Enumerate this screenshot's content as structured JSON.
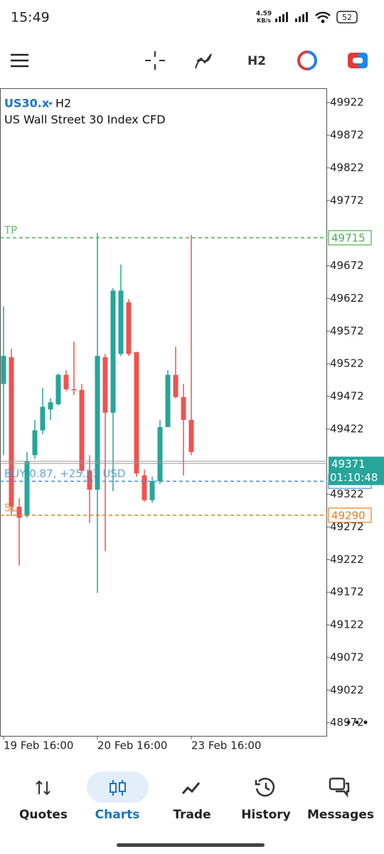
{
  "status_bar": {
    "time": "15:49",
    "speed": "4.59",
    "speed_unit": "KB/s",
    "battery": "52"
  },
  "toolbar": {
    "timeframe": "H2"
  },
  "chart": {
    "type": "candlestick",
    "symbol": "US30.x",
    "timeframe": "H2",
    "description": "US Wall Street 30 Index CFD",
    "categories": [
      "19 Feb 16:00",
      null,
      null,
      null,
      null,
      null,
      null,
      null,
      null,
      null,
      null,
      null,
      "20 Feb 16:00",
      null,
      null,
      null,
      null,
      null,
      null,
      null,
      null,
      null,
      null,
      null,
      "23 Feb 16:00"
    ],
    "open": [
      49491,
      49532,
      49303,
      49289,
      49382,
      49420,
      49452,
      49460,
      49505,
      49483,
      49482,
      49358,
      49329,
      49532,
      49447,
      49537,
      49616,
      49540,
      49351,
      49313,
      49342,
      49425,
      49505,
      49471,
      49436
    ],
    "high": [
      49610,
      49545,
      49316,
      49387,
      49436,
      49485,
      49469,
      49507,
      49512,
      49556,
      49491,
      49382,
      49722,
      49537,
      49638,
      49674,
      49621,
      49540,
      49360,
      49349,
      49436,
      49512,
      49548,
      49491,
      49719
    ],
    "low": [
      49382,
      49289,
      49213,
      49286,
      49376,
      49414,
      49436,
      49458,
      49480,
      49474,
      49354,
      49278,
      49171,
      49235,
      49327,
      49534,
      49534,
      49349,
      49311,
      49309,
      49338,
      49425,
      49469,
      49351,
      49382
    ],
    "close": [
      49534,
      49303,
      49286,
      49373,
      49420,
      49456,
      49463,
      49505,
      49483,
      49482,
      49358,
      49329,
      49534,
      49447,
      49634,
      49634,
      49537,
      49354,
      49313,
      49342,
      49425,
      49505,
      49471,
      49436,
      49387
    ],
    "up_color": "#26a69a",
    "down_color": "#ef5350",
    "ylim": [
      48952,
      49944
    ],
    "yticks": [
      49922,
      49872,
      49822,
      49772,
      49672,
      49622,
      49572,
      49522,
      49472,
      49422,
      49322,
      49272,
      49222,
      49172,
      49122,
      49072,
      49022,
      48972
    ],
    "levels": [
      {
        "name": "TP",
        "value": 49715,
        "color": "#4caf50"
      },
      {
        "name": "SL",
        "value": 49290,
        "color": "#e67e22"
      },
      {
        "name": "BUY 0.87, +25.23 USD",
        "value": 49342,
        "color": "#4a90d9"
      }
    ],
    "bid": 49371,
    "countdown": "01:10:48",
    "bid_color": "#26a69a"
  },
  "nav": [
    {
      "label": "Quotes"
    },
    {
      "label": "Charts",
      "active": true
    },
    {
      "label": "Trade"
    },
    {
      "label": "History"
    },
    {
      "label": "Messages"
    }
  ]
}
